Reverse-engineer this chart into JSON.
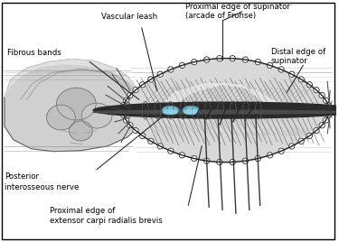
{
  "bg_color": "#ffffff",
  "fig_width": 3.75,
  "fig_height": 2.68,
  "dpi": 100,
  "labels": {
    "vascular_leash": "Vascular leash",
    "fibrous_bands": "Fibrous bands",
    "proximal_edge_supinator": "Proximal edge of supinator\n(arcade of Frohse)",
    "distal_edge_supinator": "Distal edge of\nsupinator",
    "posterior_interosseous": "Posterior\ninterosseous nerve",
    "proximal_edge_extensor": "Proximal edge of\nextensor carpi radialis brevis"
  },
  "arm_color": "#c8c8c8",
  "arm_light": "#e0e0e0",
  "nerve_color": "#3a3a3a",
  "vessel_color": "#7bbfd4",
  "muscle_color": "#c0c0c0",
  "muscle_light": "#d8d8d8",
  "line_color": "#222222",
  "text_color": "#000000"
}
